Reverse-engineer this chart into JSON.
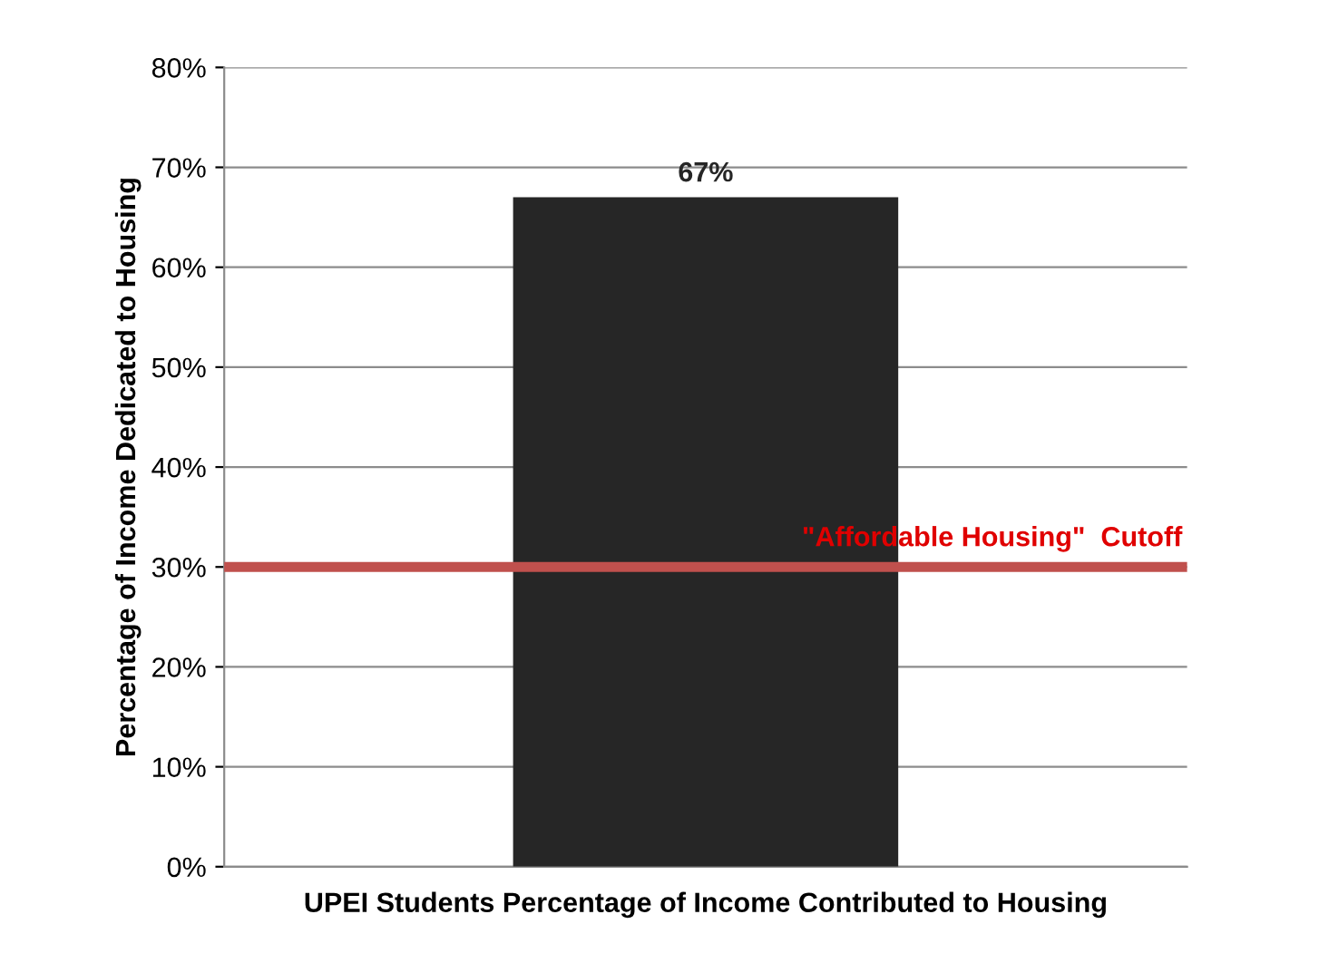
{
  "chart_data": {
    "type": "bar",
    "categories": [
      "UPEI Students Percentage of Income Contributed to Housing"
    ],
    "values": [
      67
    ],
    "value_labels": [
      "67%"
    ],
    "color": "#262626",
    "ylabel": "Percentage of Income Dedicated to Housing",
    "ylim": [
      0,
      80
    ],
    "yticks": [
      {
        "value": 0,
        "label": "0%"
      },
      {
        "value": 10,
        "label": "10%"
      },
      {
        "value": 20,
        "label": "20%"
      },
      {
        "value": 30,
        "label": "30%"
      },
      {
        "value": 40,
        "label": "40%"
      },
      {
        "value": 50,
        "label": "50%"
      },
      {
        "value": 60,
        "label": "60%"
      },
      {
        "value": 70,
        "label": "70%"
      },
      {
        "value": 80,
        "label": "80%"
      }
    ],
    "grid": "y",
    "ref_lines": [
      {
        "axis": "y",
        "value": 30,
        "label": "\"Affordable Housing\"  Cutoff",
        "color": "#c0504d"
      }
    ]
  }
}
